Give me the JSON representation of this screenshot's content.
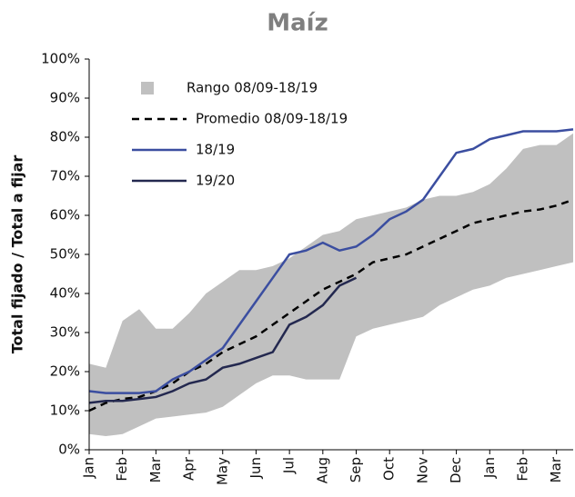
{
  "chart_data": {
    "type": "line",
    "title": "Maíz",
    "y_label": "Total fijado / Total a fijar",
    "categories": [
      "Jan",
      null,
      "Feb",
      null,
      "Mar",
      null,
      "Apr",
      null,
      "May",
      null,
      "Jun",
      null,
      "Jul",
      null,
      "Aug",
      null,
      "Sep",
      null,
      "Oct",
      null,
      "Nov",
      null,
      "Dec",
      null,
      "Jan",
      null,
      "Feb",
      null,
      "Mar",
      null
    ],
    "ylim": [
      0,
      100
    ],
    "yticks": [
      {
        "value": 0,
        "label": "0%"
      },
      {
        "value": 10,
        "label": "10%"
      },
      {
        "value": 20,
        "label": "20%"
      },
      {
        "value": 30,
        "label": "30%"
      },
      {
        "value": 40,
        "label": "40%"
      },
      {
        "value": 50,
        "label": "50%"
      },
      {
        "value": 60,
        "label": "60%"
      },
      {
        "value": 70,
        "label": "70%"
      },
      {
        "value": 80,
        "label": "80%"
      },
      {
        "value": 90,
        "label": "90%"
      },
      {
        "value": 100,
        "label": "100%"
      }
    ],
    "series": [
      {
        "name": "Rango 08/09-18/19",
        "color": "#c0c0c0",
        "kind": "band",
        "low": [
          4,
          3.5,
          4,
          6,
          8,
          8.5,
          9,
          9.5,
          11,
          14,
          17,
          19,
          19,
          18,
          18,
          18,
          29,
          31,
          32,
          33,
          34,
          37,
          39,
          41,
          42,
          44,
          45,
          46,
          47,
          48
        ],
        "high": [
          22,
          21,
          33,
          36,
          31,
          31,
          35,
          40,
          43,
          46,
          46,
          47,
          49,
          52,
          55,
          56,
          59,
          60,
          61,
          62,
          64,
          65,
          65,
          66,
          68,
          72,
          77,
          78,
          78,
          81
        ]
      },
      {
        "name": "Promedio 08/09-18/19",
        "color": "#000000",
        "dash": true,
        "values": [
          10,
          12,
          13,
          13.5,
          15,
          17,
          20,
          22,
          25,
          27,
          29,
          32,
          35,
          38,
          41,
          43,
          45,
          48,
          49,
          50,
          52,
          54,
          56,
          58,
          59,
          60,
          61,
          61.5,
          62.5,
          64
        ]
      },
      {
        "name": "18/19",
        "color": "#3b4ea0",
        "values": [
          15,
          14.5,
          14.5,
          14.5,
          15,
          18,
          20,
          23,
          26,
          32,
          38,
          44,
          50,
          51,
          53,
          51,
          52,
          55,
          59,
          61,
          64,
          70,
          76,
          77,
          79.5,
          80.5,
          81.5,
          81.5,
          81.5,
          82
        ]
      },
      {
        "name": "19/20",
        "color": "#23284f",
        "values": [
          12,
          12.5,
          12.5,
          13,
          13.5,
          15,
          17,
          18,
          21,
          22,
          23.5,
          25,
          32,
          34,
          37,
          42,
          44,
          null,
          null,
          null,
          null,
          null,
          null,
          null,
          null,
          null,
          null,
          null,
          null,
          null
        ]
      }
    ]
  }
}
